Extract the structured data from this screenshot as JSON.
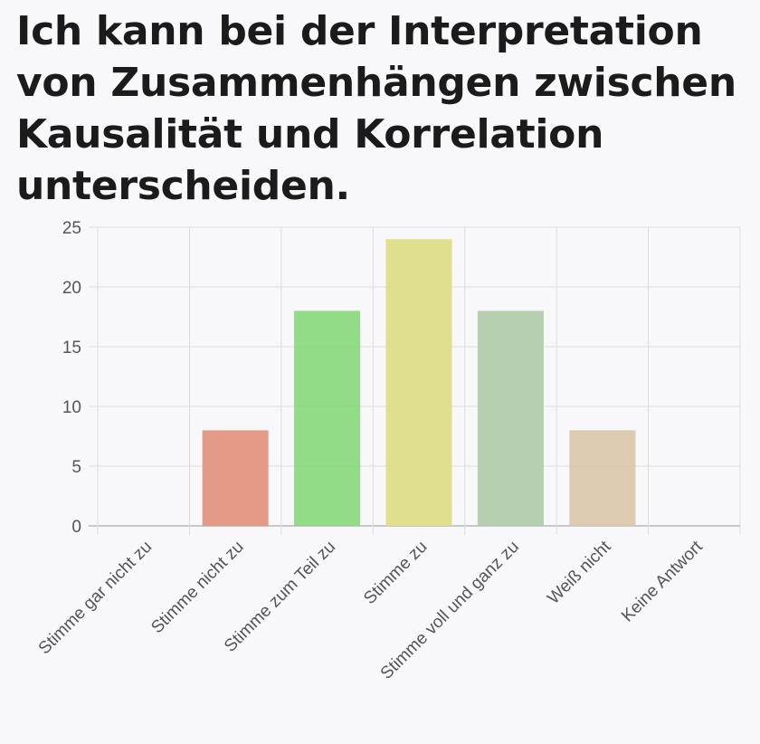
{
  "chart_data": {
    "type": "bar",
    "title": "Ich kann bei der Interpretation von Zusammenhängen zwischen Kausalität und Korrelation unterscheiden.",
    "xlabel": "",
    "ylabel": "",
    "categories": [
      "Stimme gar nicht zu",
      "Stimme nicht zu",
      "Stimme zum Teil zu",
      "Stimme zu",
      "Stimme voll und ganz zu",
      "Weiß nicht",
      "Keine Antwort"
    ],
    "values": [
      0,
      8,
      18,
      24,
      18,
      8,
      0
    ],
    "colors": [
      "#e0907a",
      "#e0907a",
      "#86d87a",
      "#dcdc82",
      "#aecaa8",
      "#d8c4a8",
      "#cccccc"
    ],
    "ylim": [
      0,
      25
    ],
    "yticks": [
      "0",
      "5",
      "10",
      "15",
      "20",
      "25"
    ],
    "grid": true,
    "legend": "none"
  }
}
